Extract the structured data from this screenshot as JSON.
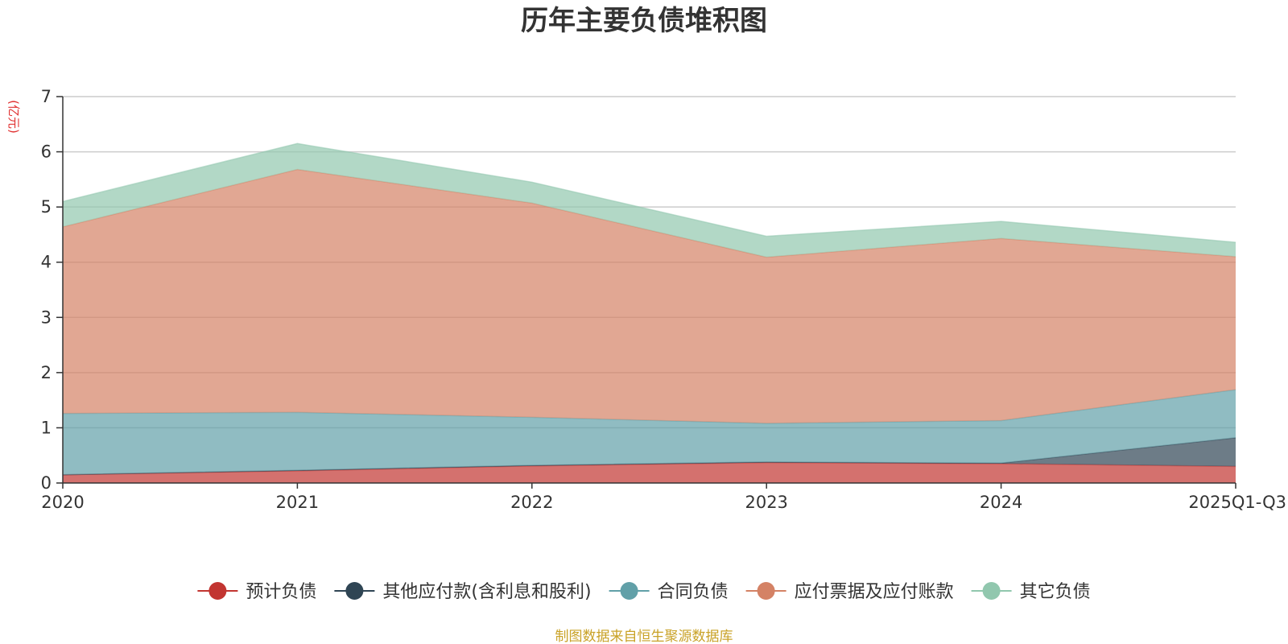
{
  "chart_data": {
    "type": "area",
    "stacked": true,
    "title": "历年主要负债堆积图",
    "unit_label": "(亿元)",
    "xlabel": "",
    "ylabel": "",
    "categories": [
      "2020",
      "2021",
      "2022",
      "2023",
      "2024",
      "2025Q1-Q3"
    ],
    "ylim": [
      0,
      7
    ],
    "yticks": [
      0,
      1,
      2,
      3,
      4,
      5,
      6,
      7
    ],
    "grid": true,
    "legend_position": "bottom",
    "series": [
      {
        "name": "预计负债",
        "color": "#c23531",
        "values": [
          0.15,
          0.22,
          0.31,
          0.37,
          0.35,
          0.3
        ]
      },
      {
        "name": "其他应付款(含利息和股利)",
        "color": "#2f4554",
        "values": [
          0.0,
          0.01,
          0.01,
          0.01,
          0.01,
          0.52
        ]
      },
      {
        "name": "合同负债",
        "color": "#61a0a8",
        "values": [
          1.11,
          1.05,
          0.87,
          0.7,
          0.77,
          0.87
        ]
      },
      {
        "name": "应付票据及应付账款",
        "color": "#d48265",
        "values": [
          3.38,
          4.4,
          3.88,
          3.01,
          3.3,
          2.41
        ]
      },
      {
        "name": "其它负债",
        "color": "#91c7ae",
        "values": [
          0.46,
          0.47,
          0.38,
          0.38,
          0.31,
          0.26
        ]
      }
    ]
  },
  "source_note": "制图数据来自恒生聚源数据库"
}
